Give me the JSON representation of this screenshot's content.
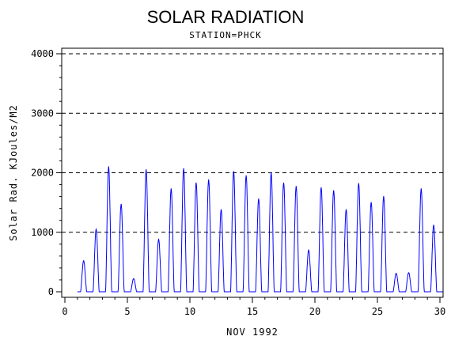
{
  "chart_data": {
    "type": "line",
    "title": "SOLAR RADIATION",
    "subtitle": "STATION=PHCK",
    "xlabel": "NOV 1992",
    "ylabel": "Solar Rad. KJoules/M2",
    "xlim": [
      0,
      30
    ],
    "ylim": [
      0,
      4000
    ],
    "xticks": [
      "0",
      "5",
      "10",
      "15",
      "20",
      "25",
      "30"
    ],
    "yticks": [
      "0",
      "1000",
      "2000",
      "3000",
      "4000"
    ],
    "grid": "horizontal dashed",
    "series": [
      {
        "color": "#0000ff",
        "daily_peaks": [
          {
            "day": 1,
            "peak": 520
          },
          {
            "day": 2,
            "peak": 1050
          },
          {
            "day": 3,
            "peak": 2100
          },
          {
            "day": 4,
            "peak": 1470
          },
          {
            "day": 5,
            "peak": 220
          },
          {
            "day": 6,
            "peak": 2050
          },
          {
            "day": 7,
            "peak": 880
          },
          {
            "day": 8,
            "peak": 1730
          },
          {
            "day": 9,
            "peak": 2070
          },
          {
            "day": 10,
            "peak": 1830
          },
          {
            "day": 11,
            "peak": 1880
          },
          {
            "day": 12,
            "peak": 1380
          },
          {
            "day": 13,
            "peak": 2020
          },
          {
            "day": 14,
            "peak": 1950
          },
          {
            "day": 15,
            "peak": 1560
          },
          {
            "day": 16,
            "peak": 2000
          },
          {
            "day": 17,
            "peak": 1830
          },
          {
            "day": 18,
            "peak": 1770
          },
          {
            "day": 19,
            "peak": 700
          },
          {
            "day": 20,
            "peak": 1750
          },
          {
            "day": 21,
            "peak": 1700
          },
          {
            "day": 22,
            "peak": 1380
          },
          {
            "day": 23,
            "peak": 1820
          },
          {
            "day": 24,
            "peak": 1500
          },
          {
            "day": 25,
            "peak": 1600
          },
          {
            "day": 26,
            "peak": 310
          },
          {
            "day": 27,
            "peak": 320
          },
          {
            "day": 28,
            "peak": 1730
          },
          {
            "day": 29,
            "peak": 1120
          }
        ]
      }
    ]
  }
}
